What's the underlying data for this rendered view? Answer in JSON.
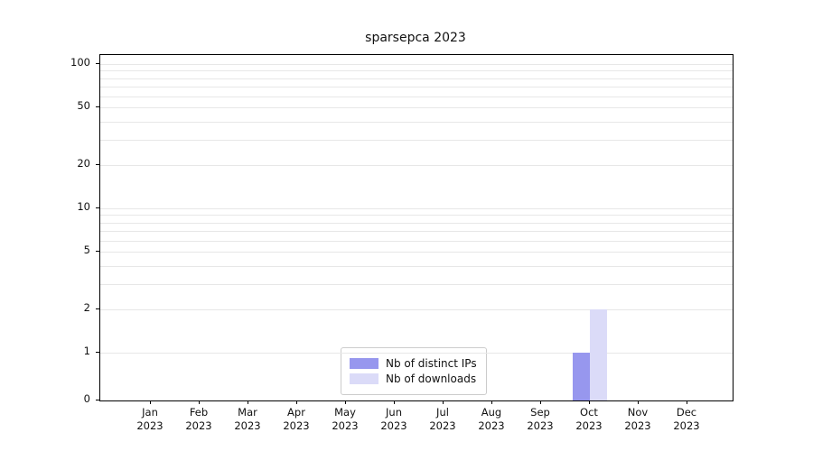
{
  "title": "sparsepca 2023",
  "chart_data": {
    "type": "bar",
    "title": "sparsepca 2023",
    "x_year": "2023",
    "categories": [
      "Jan",
      "Feb",
      "Mar",
      "Apr",
      "May",
      "Jun",
      "Jul",
      "Aug",
      "Sep",
      "Oct",
      "Nov",
      "Dec"
    ],
    "series": [
      {
        "name": "Nb of distinct IPs",
        "color": "#9797ee",
        "values": [
          0,
          0,
          0,
          0,
          0,
          0,
          0,
          0,
          0,
          1,
          0,
          0
        ]
      },
      {
        "name": "Nb of downloads",
        "color": "#dbdbf8",
        "values": [
          0,
          0,
          0,
          0,
          0,
          0,
          0,
          0,
          0,
          2,
          0,
          0
        ]
      }
    ],
    "yticks": [
      0,
      1,
      2,
      5,
      10,
      20,
      50,
      100
    ],
    "gridline_values": [
      1,
      2,
      3,
      4,
      5,
      6,
      7,
      8,
      9,
      10,
      20,
      30,
      40,
      50,
      60,
      70,
      80,
      90,
      100
    ],
    "scale": "symlog",
    "ylim": [
      0,
      120
    ],
    "grid": "horizontal-minor",
    "legend_position": "lower center"
  }
}
